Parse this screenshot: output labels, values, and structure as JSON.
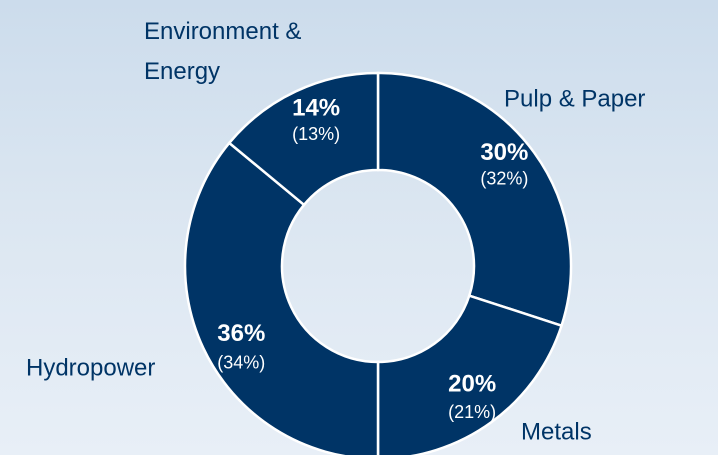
{
  "chart_data": {
    "type": "pie",
    "style": "donut",
    "direction": "clockwise-from-top",
    "categories": [
      "Pulp & Paper",
      "Metals",
      "Hydropower",
      "Environment & Energy"
    ],
    "series": [
      {
        "values": [
          30,
          20,
          36,
          14
        ],
        "labels": [
          "30%",
          "20%",
          "36%",
          "14%"
        ]
      },
      {
        "values": [
          32,
          21,
          34,
          13
        ],
        "labels": [
          "(32%)",
          "(21%)",
          "(34%)",
          "(13%)"
        ]
      }
    ],
    "colors": {
      "slice": "#003466",
      "separator": "#ffffff",
      "slice_text": "#ffffff",
      "category_text": "#003466",
      "background_top": "#ccdcec",
      "background_bottom": "#e8eff7"
    },
    "grid": false,
    "legend": "none"
  }
}
